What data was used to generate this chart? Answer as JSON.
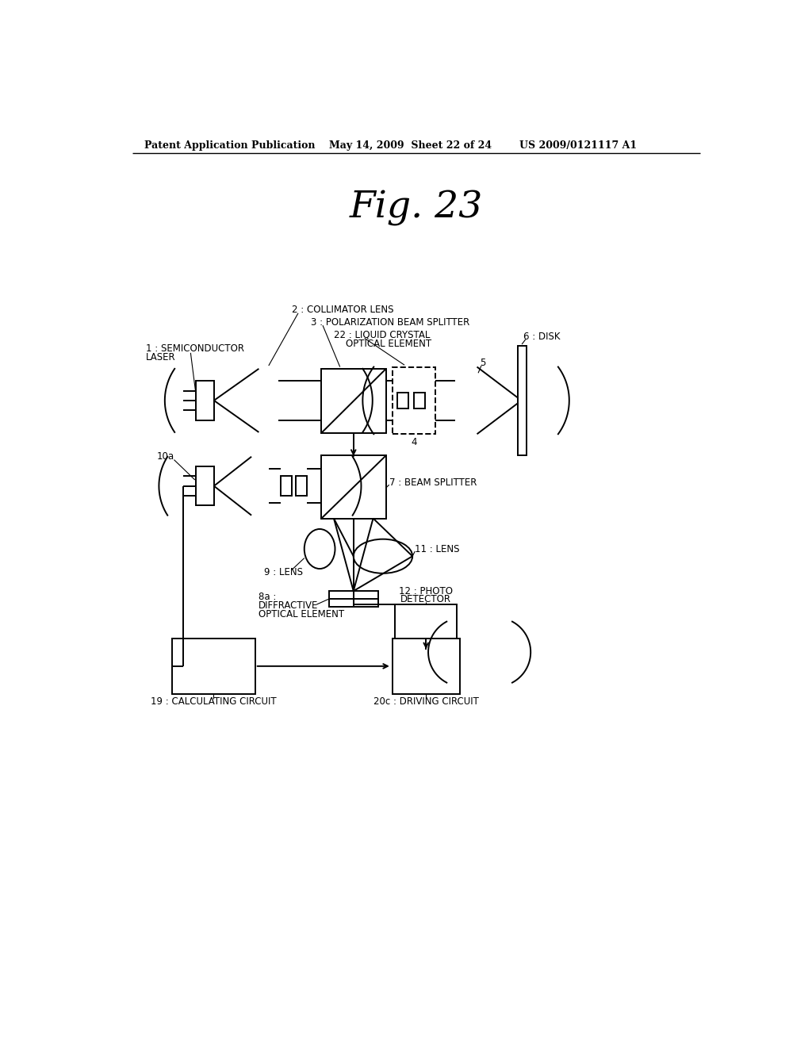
{
  "title": "Fig. 23",
  "header_left": "Patent Application Publication",
  "header_center": "May 14, 2009  Sheet 22 of 24",
  "header_right": "US 2009/0121117 A1",
  "bg_color": "#ffffff",
  "line_color": "#000000",
  "lw": 1.4,
  "lw_thin": 0.8
}
